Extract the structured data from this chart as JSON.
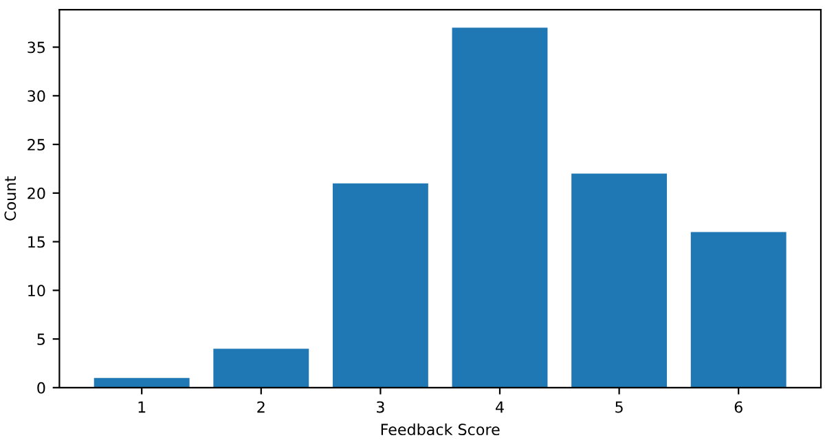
{
  "chart_data": {
    "type": "bar",
    "xlabel": "Feedback Score",
    "ylabel": "Count",
    "categories": [
      "1",
      "2",
      "3",
      "4",
      "5",
      "6"
    ],
    "values": [
      1,
      4,
      21,
      37,
      22,
      16
    ],
    "color": "#1f77b4",
    "ylim": [
      0,
      38.85
    ],
    "yticks": [
      0,
      5,
      10,
      15,
      20,
      25,
      30,
      35
    ],
    "grid": false
  }
}
